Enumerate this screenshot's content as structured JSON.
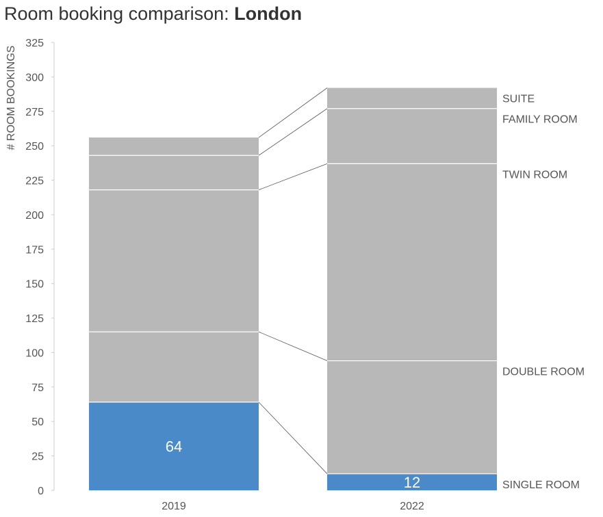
{
  "chart_title": {
    "prefix": "Room booking comparison: ",
    "emphasis": "London"
  },
  "chart_data": {
    "type": "bar",
    "stacked": true,
    "title": "Room booking comparison: London",
    "xlabel": "",
    "ylabel": "# ROOM BOOKINGS",
    "categories": [
      "2019",
      "2022"
    ],
    "ylim": [
      0,
      325
    ],
    "yticks": [
      0,
      25,
      50,
      75,
      100,
      125,
      150,
      175,
      200,
      225,
      250,
      275,
      300,
      325
    ],
    "grid": false,
    "legend": "direct labels on the right",
    "connector_lines": true,
    "series": [
      {
        "name": "SINGLE ROOM",
        "values": [
          64,
          12
        ],
        "color": "#4a8ac9",
        "show_value_labels": true
      },
      {
        "name": "DOUBLE ROOM",
        "values": [
          51,
          82
        ],
        "color": "#b8b8b8",
        "show_value_labels": false
      },
      {
        "name": "TWIN ROOM",
        "values": [
          103,
          143
        ],
        "color": "#b8b8b8",
        "show_value_labels": false
      },
      {
        "name": "FAMILY ROOM",
        "values": [
          25,
          40
        ],
        "color": "#b8b8b8",
        "show_value_labels": false
      },
      {
        "name": "SUITE",
        "values": [
          13,
          15
        ],
        "color": "#b8b8b8",
        "show_value_labels": false
      }
    ]
  },
  "colors": {
    "highlight": "#4a8ac9",
    "muted": "#b8b8b8",
    "text": "#333333",
    "axis_text": "#555555",
    "connector": "#555555"
  }
}
